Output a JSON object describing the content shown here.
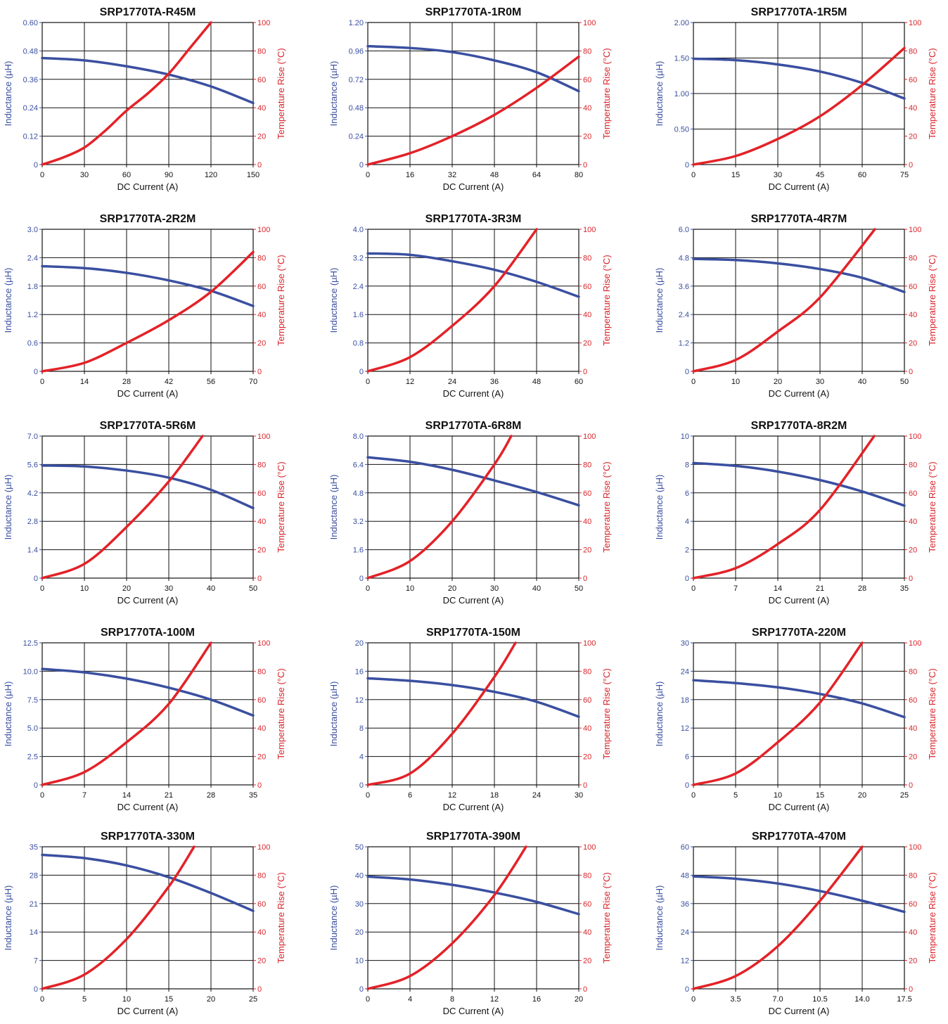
{
  "style": {
    "inductance_color": "#3a4fa0",
    "temperature_color": "#e32228",
    "grid_color": "#111111"
  },
  "chart_data": [
    {
      "type": "line",
      "title": "SRP1770TA-R45M",
      "xlabel": "DC Current (A)",
      "ylabel": "Inductance (µH)",
      "y2label": "Temperature Rise (°C)",
      "x_ticks": [
        "0",
        "30",
        "60",
        "90",
        "120",
        "150"
      ],
      "y_ticks": [
        "0",
        "0.12",
        "0.24",
        "0.36",
        "0.48",
        "0.60"
      ],
      "y2_ticks": [
        "0",
        "20",
        "40",
        "60",
        "80",
        "100"
      ],
      "xlim": [
        0,
        150
      ],
      "ylim": [
        0,
        0.6
      ],
      "y2lim": [
        0,
        100
      ],
      "grid": true,
      "series": [
        {
          "axis": "left",
          "x": [
            0,
            30,
            60,
            90,
            120,
            150
          ],
          "y": [
            0.45,
            0.44,
            0.415,
            0.38,
            0.33,
            0.26
          ]
        },
        {
          "axis": "right",
          "x": [
            0,
            15,
            30,
            45,
            60,
            75,
            90,
            105,
            120
          ],
          "y": [
            0,
            5,
            12,
            24,
            38,
            50,
            64,
            82,
            100
          ]
        }
      ]
    },
    {
      "type": "line",
      "title": "SRP1770TA-1R0M",
      "xlabel": "DC Current (A)",
      "ylabel": "Inductance (µH)",
      "y2label": "Temperature Rise (°C)",
      "x_ticks": [
        "0",
        "16",
        "32",
        "48",
        "64",
        "80"
      ],
      "y_ticks": [
        "0",
        "0.24",
        "0.48",
        "0.72",
        "0.96",
        "1.20"
      ],
      "y2_ticks": [
        "0",
        "20",
        "40",
        "60",
        "80",
        "100"
      ],
      "xlim": [
        0,
        80
      ],
      "ylim": [
        0,
        1.2
      ],
      "y2lim": [
        0,
        100
      ],
      "grid": true,
      "series": [
        {
          "axis": "left",
          "x": [
            0,
            16,
            32,
            48,
            64,
            80
          ],
          "y": [
            1.0,
            0.985,
            0.95,
            0.88,
            0.78,
            0.62
          ]
        },
        {
          "axis": "right",
          "x": [
            0,
            16,
            32,
            48,
            64,
            80
          ],
          "y": [
            0,
            8,
            20,
            35,
            54,
            76
          ]
        }
      ]
    },
    {
      "type": "line",
      "title": "SRP1770TA-1R5M",
      "xlabel": "DC Current (A)",
      "ylabel": "Inductance (µH)",
      "y2label": "Temperature Rise (°C)",
      "x_ticks": [
        "0",
        "15",
        "30",
        "45",
        "60",
        "75"
      ],
      "y_ticks": [
        "0",
        "0.50",
        "1.00",
        "1.50",
        "2.00"
      ],
      "y2_ticks": [
        "0",
        "20",
        "40",
        "60",
        "80",
        "100"
      ],
      "xlim": [
        0,
        75
      ],
      "ylim": [
        0,
        2.0
      ],
      "y2lim": [
        0,
        100
      ],
      "grid": true,
      "series": [
        {
          "axis": "left",
          "x": [
            0,
            15,
            30,
            45,
            60,
            75
          ],
          "y": [
            1.49,
            1.47,
            1.41,
            1.31,
            1.15,
            0.93
          ]
        },
        {
          "axis": "right",
          "x": [
            0,
            15,
            30,
            45,
            60,
            75
          ],
          "y": [
            0,
            6,
            18,
            34,
            56,
            82
          ]
        }
      ]
    },
    {
      "type": "line",
      "title": "SRP1770TA-2R2M",
      "xlabel": "DC Current (A)",
      "ylabel": "Inductance (µH)",
      "y2label": "Temperature Rise (°C)",
      "x_ticks": [
        "0",
        "14",
        "28",
        "42",
        "56",
        "70"
      ],
      "y_ticks": [
        "0",
        "0.6",
        "1.2",
        "1.8",
        "2.4",
        "3.0"
      ],
      "y2_ticks": [
        "0",
        "20",
        "40",
        "60",
        "80",
        "100"
      ],
      "xlim": [
        0,
        70
      ],
      "ylim": [
        0,
        3.0
      ],
      "y2lim": [
        0,
        100
      ],
      "grid": true,
      "series": [
        {
          "axis": "left",
          "x": [
            0,
            14,
            28,
            42,
            56,
            70
          ],
          "y": [
            2.22,
            2.18,
            2.08,
            1.92,
            1.7,
            1.38
          ]
        },
        {
          "axis": "right",
          "x": [
            0,
            14,
            28,
            42,
            56,
            70
          ],
          "y": [
            0,
            6,
            20,
            36,
            56,
            84
          ]
        }
      ]
    },
    {
      "type": "line",
      "title": "SRP1770TA-3R3M",
      "xlabel": "DC Current (A)",
      "ylabel": "Inductance (µH)",
      "y2label": "Temperature Rise (°C)",
      "x_ticks": [
        "0",
        "12",
        "24",
        "36",
        "48",
        "60"
      ],
      "y_ticks": [
        "0",
        "0.8",
        "1.6",
        "2.4",
        "3.2",
        "4.0"
      ],
      "y2_ticks": [
        "0",
        "20",
        "40",
        "60",
        "80",
        "100"
      ],
      "xlim": [
        0,
        60
      ],
      "ylim": [
        0,
        4.0
      ],
      "y2lim": [
        0,
        100
      ],
      "grid": true,
      "series": [
        {
          "axis": "left",
          "x": [
            0,
            12,
            24,
            36,
            48,
            60
          ],
          "y": [
            3.32,
            3.28,
            3.1,
            2.86,
            2.52,
            2.1
          ]
        },
        {
          "axis": "right",
          "x": [
            0,
            12,
            24,
            36,
            48
          ],
          "y": [
            0,
            10,
            32,
            60,
            100
          ]
        }
      ]
    },
    {
      "type": "line",
      "title": "SRP1770TA-4R7M",
      "xlabel": "DC Current (A)",
      "ylabel": "Inductance (µH)",
      "y2label": "Temperature Rise (°C)",
      "x_ticks": [
        "0",
        "10",
        "20",
        "30",
        "40",
        "50"
      ],
      "y_ticks": [
        "0",
        "1.2",
        "2.4",
        "3.6",
        "4.8",
        "6.0"
      ],
      "y2_ticks": [
        "0",
        "20",
        "40",
        "60",
        "80",
        "100"
      ],
      "xlim": [
        0,
        50
      ],
      "ylim": [
        0,
        6.0
      ],
      "y2lim": [
        0,
        100
      ],
      "grid": true,
      "series": [
        {
          "axis": "left",
          "x": [
            0,
            10,
            20,
            30,
            40,
            50
          ],
          "y": [
            4.75,
            4.7,
            4.56,
            4.32,
            3.95,
            3.35
          ]
        },
        {
          "axis": "right",
          "x": [
            0,
            10,
            20,
            30,
            43
          ],
          "y": [
            0,
            8,
            28,
            52,
            100
          ]
        }
      ]
    },
    {
      "type": "line",
      "title": "SRP1770TA-5R6M",
      "xlabel": "DC Current (A)",
      "ylabel": "Inductance (µH)",
      "y2label": "Temperature Rise (°C)",
      "x_ticks": [
        "0",
        "10",
        "20",
        "30",
        "40",
        "50"
      ],
      "y_ticks": [
        "0",
        "1.4",
        "2.8",
        "4.2",
        "5.6",
        "7.0"
      ],
      "y2_ticks": [
        "0",
        "20",
        "40",
        "60",
        "80",
        "100"
      ],
      "xlim": [
        0,
        50
      ],
      "ylim": [
        0,
        7.0
      ],
      "y2lim": [
        0,
        100
      ],
      "grid": true,
      "series": [
        {
          "axis": "left",
          "x": [
            0,
            10,
            20,
            30,
            40,
            50
          ],
          "y": [
            5.55,
            5.5,
            5.3,
            4.95,
            4.35,
            3.45
          ]
        },
        {
          "axis": "right",
          "x": [
            0,
            10,
            20,
            30,
            38
          ],
          "y": [
            0,
            10,
            36,
            68,
            100
          ]
        }
      ]
    },
    {
      "type": "line",
      "title": "SRP1770TA-6R8M",
      "xlabel": "DC Current (A)",
      "ylabel": "Inductance (µH)",
      "y2label": "Temperature Rise (°C)",
      "x_ticks": [
        "0",
        "10",
        "20",
        "30",
        "40",
        "50"
      ],
      "y_ticks": [
        "0",
        "1.6",
        "3.2",
        "4.8",
        "6.4",
        "8.0"
      ],
      "y2_ticks": [
        "0",
        "20",
        "40",
        "60",
        "80",
        "100"
      ],
      "xlim": [
        0,
        50
      ],
      "ylim": [
        0,
        8.0
      ],
      "y2lim": [
        0,
        100
      ],
      "grid": true,
      "series": [
        {
          "axis": "left",
          "x": [
            0,
            10,
            20,
            30,
            40,
            50
          ],
          "y": [
            6.8,
            6.55,
            6.1,
            5.5,
            4.85,
            4.1
          ]
        },
        {
          "axis": "right",
          "x": [
            0,
            10,
            20,
            30,
            34
          ],
          "y": [
            0,
            12,
            40,
            80,
            100
          ]
        }
      ]
    },
    {
      "type": "line",
      "title": "SRP1770TA-8R2M",
      "xlabel": "DC Current (A)",
      "ylabel": "Inductance (µH)",
      "y2label": "Temperature Rise (°C)",
      "x_ticks": [
        "0",
        "7",
        "14",
        "21",
        "28",
        "35"
      ],
      "y_ticks": [
        "0",
        "2",
        "4",
        "6",
        "8",
        "10"
      ],
      "y2_ticks": [
        "0",
        "20",
        "40",
        "60",
        "80",
        "100"
      ],
      "xlim": [
        0,
        35
      ],
      "ylim": [
        0,
        10
      ],
      "y2lim": [
        0,
        100
      ],
      "grid": true,
      "series": [
        {
          "axis": "left",
          "x": [
            0,
            7,
            14,
            21,
            28,
            35
          ],
          "y": [
            8.1,
            7.9,
            7.5,
            6.9,
            6.1,
            5.1
          ]
        },
        {
          "axis": "right",
          "x": [
            0,
            7,
            14,
            21,
            30
          ],
          "y": [
            0,
            7,
            24,
            48,
            100
          ]
        }
      ]
    },
    {
      "type": "line",
      "title": "SRP1770TA-100M",
      "xlabel": "DC Current (A)",
      "ylabel": "Inductance (µH)",
      "y2label": "Temperature Rise (°C)",
      "x_ticks": [
        "0",
        "7",
        "14",
        "21",
        "28",
        "35"
      ],
      "y_ticks": [
        "0",
        "2.5",
        "5.0",
        "7.5",
        "10.0",
        "12.5"
      ],
      "y2_ticks": [
        "0",
        "20",
        "40",
        "60",
        "80",
        "100"
      ],
      "xlim": [
        0,
        35
      ],
      "ylim": [
        0,
        12.5
      ],
      "y2lim": [
        0,
        100
      ],
      "grid": true,
      "series": [
        {
          "axis": "left",
          "x": [
            0,
            7,
            14,
            21,
            28,
            35
          ],
          "y": [
            10.2,
            9.9,
            9.35,
            8.55,
            7.5,
            6.1
          ]
        },
        {
          "axis": "right",
          "x": [
            0,
            7,
            14,
            21,
            28
          ],
          "y": [
            0,
            9,
            30,
            57,
            100
          ]
        }
      ]
    },
    {
      "type": "line",
      "title": "SRP1770TA-150M",
      "xlabel": "DC Current (A)",
      "ylabel": "Inductance (µH)",
      "y2label": "Temperature Rise (°C)",
      "x_ticks": [
        "0",
        "6",
        "12",
        "18",
        "24",
        "30"
      ],
      "y_ticks": [
        "0",
        "4",
        "8",
        "12",
        "16",
        "20"
      ],
      "y2_ticks": [
        "0",
        "20",
        "40",
        "60",
        "80",
        "100"
      ],
      "xlim": [
        0,
        30
      ],
      "ylim": [
        0,
        20
      ],
      "y2lim": [
        0,
        100
      ],
      "grid": true,
      "series": [
        {
          "axis": "left",
          "x": [
            0,
            6,
            12,
            18,
            24,
            30
          ],
          "y": [
            15.0,
            14.65,
            14.05,
            13.1,
            11.7,
            9.6
          ]
        },
        {
          "axis": "right",
          "x": [
            0,
            6,
            12,
            18,
            21
          ],
          "y": [
            0,
            8,
            36,
            76,
            100
          ]
        }
      ]
    },
    {
      "type": "line",
      "title": "SRP1770TA-220M",
      "xlabel": "DC Current (A)",
      "ylabel": "Inductance (µH)",
      "y2label": "Temperature Rise (°C)",
      "x_ticks": [
        "0",
        "5",
        "10",
        "15",
        "20",
        "25"
      ],
      "y_ticks": [
        "0",
        "6",
        "12",
        "18",
        "24",
        "30"
      ],
      "y2_ticks": [
        "0",
        "20",
        "40",
        "60",
        "80",
        "100"
      ],
      "xlim": [
        0,
        25
      ],
      "ylim": [
        0,
        30
      ],
      "y2lim": [
        0,
        100
      ],
      "grid": true,
      "series": [
        {
          "axis": "left",
          "x": [
            0,
            5,
            10,
            15,
            20,
            25
          ],
          "y": [
            22.1,
            21.5,
            20.6,
            19.2,
            17.2,
            14.3
          ]
        },
        {
          "axis": "right",
          "x": [
            0,
            5,
            10,
            15,
            20
          ],
          "y": [
            0,
            8,
            30,
            58,
            100
          ]
        }
      ]
    },
    {
      "type": "line",
      "title": "SRP1770TA-330M",
      "xlabel": "DC Current (A)",
      "ylabel": "Inductance (µH)",
      "y2label": "Temperature Rise (°C)",
      "x_ticks": [
        "0",
        "5",
        "10",
        "15",
        "20",
        "25"
      ],
      "y_ticks": [
        "0",
        "7",
        "14",
        "21",
        "28",
        "35"
      ],
      "y2_ticks": [
        "0",
        "20",
        "40",
        "60",
        "80",
        "100"
      ],
      "xlim": [
        0,
        25
      ],
      "ylim": [
        0,
        35
      ],
      "y2lim": [
        0,
        100
      ],
      "grid": true,
      "series": [
        {
          "axis": "left",
          "x": [
            0,
            5,
            10,
            15,
            20,
            25
          ],
          "y": [
            33.0,
            32.2,
            30.4,
            27.5,
            23.6,
            19.2
          ]
        },
        {
          "axis": "right",
          "x": [
            0,
            5,
            10,
            15,
            18
          ],
          "y": [
            0,
            10,
            35,
            72,
            100
          ]
        }
      ]
    },
    {
      "type": "line",
      "title": "SRP1770TA-390M",
      "xlabel": "DC Current (A)",
      "ylabel": "Inductance (µH)",
      "y2label": "Temperature Rise (°C)",
      "x_ticks": [
        "0",
        "4",
        "8",
        "12",
        "16",
        "20"
      ],
      "y_ticks": [
        "0",
        "10",
        "20",
        "30",
        "40",
        "50"
      ],
      "y2_ticks": [
        "0",
        "20",
        "40",
        "60",
        "80",
        "100"
      ],
      "xlim": [
        0,
        20
      ],
      "ylim": [
        0,
        50
      ],
      "y2lim": [
        0,
        100
      ],
      "grid": true,
      "series": [
        {
          "axis": "left",
          "x": [
            0,
            4,
            8,
            12,
            16,
            20
          ],
          "y": [
            39.5,
            38.5,
            36.6,
            33.9,
            30.6,
            26.3
          ]
        },
        {
          "axis": "right",
          "x": [
            0,
            4,
            8,
            12,
            15
          ],
          "y": [
            0,
            9,
            32,
            66,
            100
          ]
        }
      ]
    },
    {
      "type": "line",
      "title": "SRP1770TA-470M",
      "xlabel": "DC Current (A)",
      "ylabel": "Inductance (µH)",
      "y2label": "Temperature Rise (°C)",
      "x_ticks": [
        "0",
        "3.5",
        "7.0",
        "10.5",
        "14.0",
        "17.5"
      ],
      "y_ticks": [
        "0",
        "12",
        "24",
        "36",
        "48",
        "60"
      ],
      "y2_ticks": [
        "0",
        "20",
        "40",
        "60",
        "80",
        "100"
      ],
      "xlim": [
        0,
        17.5
      ],
      "ylim": [
        0,
        60
      ],
      "y2lim": [
        0,
        100
      ],
      "grid": true,
      "series": [
        {
          "axis": "left",
          "x": [
            0,
            3.5,
            7,
            10.5,
            14,
            17.5
          ],
          "y": [
            47.5,
            46.5,
            44.5,
            41.3,
            37.2,
            32.5
          ]
        },
        {
          "axis": "right",
          "x": [
            0,
            3.5,
            7,
            10.5,
            14
          ],
          "y": [
            0,
            9,
            30,
            62,
            100
          ]
        }
      ]
    }
  ]
}
